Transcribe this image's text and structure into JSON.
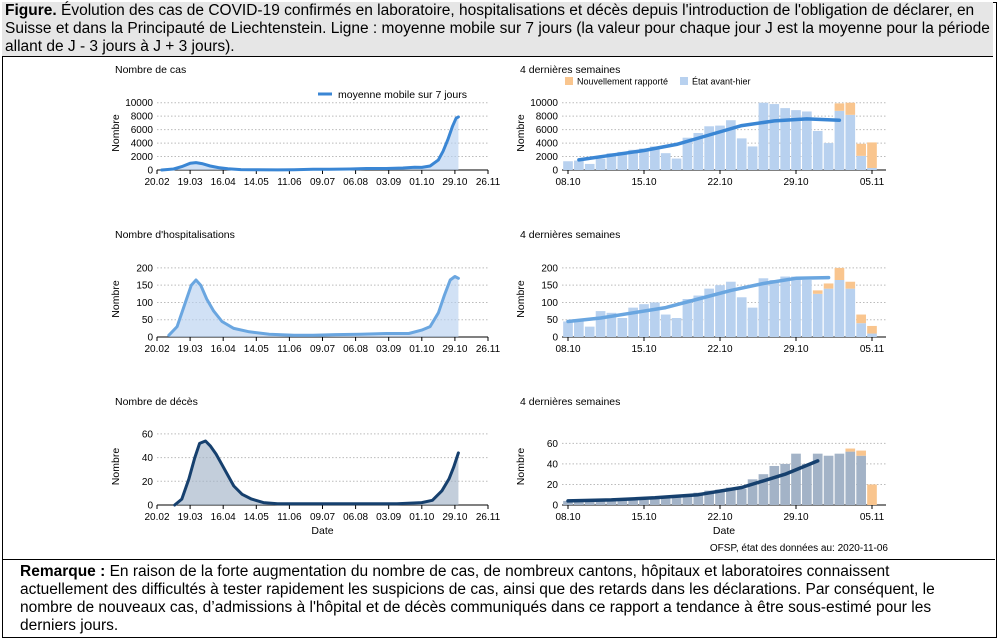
{
  "caption": {
    "label": "Figure.",
    "text": "Évolution des cas de COVID-19 confirmés en laboratoire, hospitalisations et décès depuis l'introduction de l'obligation de déclarer, en Suisse et dans la Principauté de Liechtenstein. Ligne : moyenne mobile sur 7 jours (la valeur pour chaque jour J est la moyenne pour la période allant de J - 3 jours à J + 3 jours)."
  },
  "remark": {
    "label": "Remarque :",
    "text": "En raison de la forte augmentation du nombre de cas, de nombreux cantons, hôpitaux et laboratoires connaissent actuellement des difficultés à tester rapidement les suspicions de cas, ainsi que des retards dans les déclarations. Par conséquent, le nombre de nouveaux cas, d’admissions à l'hôpital et de décès communiqués dans ce rapport a tendance à être sous-estimé pour les derniers jours."
  },
  "source": "OFSP, état des données au: 2020-11-06",
  "colors": {
    "cases": "#3a86d4",
    "hosp": "#6aa6e0",
    "deaths": "#16406e",
    "bar_light": "#b8d1ef",
    "bar_deaths": "#a3b3c7",
    "new_reported": "#f9c58e",
    "grid": "#bbbbbb"
  },
  "chart_data": [
    {
      "id": "cases_long",
      "type": "area",
      "title": "Nombre de cas",
      "xlabel": "",
      "ylabel": "Nombre",
      "xticks": [
        "20.02",
        "19.03",
        "16.04",
        "14.05",
        "11.06",
        "09.07",
        "06.08",
        "03.09",
        "01.10",
        "29.10",
        "26.11"
      ],
      "ylim": [
        0,
        11000
      ],
      "yticks": [
        0,
        2000,
        4000,
        6000,
        8000,
        10000
      ],
      "legend": [
        "moyenne mobile sur 7 jours"
      ],
      "legend_position": "top-right",
      "series": [
        {
          "name": "moyenne mobile sur 7 jours",
          "x": [
            "2020-02-24",
            "2020-03-05",
            "2020-03-12",
            "2020-03-19",
            "2020-03-24",
            "2020-03-29",
            "2020-04-05",
            "2020-04-12",
            "2020-04-20",
            "2020-05-01",
            "2020-05-15",
            "2020-06-01",
            "2020-06-15",
            "2020-07-01",
            "2020-07-15",
            "2020-08-01",
            "2020-08-15",
            "2020-09-01",
            "2020-09-15",
            "2020-09-25",
            "2020-10-01",
            "2020-10-08",
            "2020-10-15",
            "2020-10-19",
            "2020-10-23",
            "2020-10-27",
            "2020-10-30",
            "2020-11-01"
          ],
          "y": [
            0,
            150,
            500,
            1000,
            1100,
            950,
            600,
            350,
            200,
            60,
            30,
            20,
            30,
            100,
            110,
            150,
            220,
            230,
            300,
            420,
            380,
            600,
            1500,
            2800,
            4500,
            6500,
            7700,
            7900
          ]
        }
      ]
    },
    {
      "id": "cases_recent",
      "type": "bar",
      "title": "4 dernières semaines",
      "xlabel": "",
      "ylabel": "Nombre",
      "xticks": [
        "08.10",
        "15.10",
        "22.10",
        "29.10",
        "05.11"
      ],
      "ylim": [
        0,
        11000
      ],
      "yticks": [
        0,
        2000,
        4000,
        6000,
        8000,
        10000
      ],
      "legend": [
        "Nouvellement rapporté",
        "État avant-hier"
      ],
      "legend_position": "top-right",
      "series": [
        {
          "name": "État avant-hier",
          "x": [
            "2020-10-08",
            "2020-10-09",
            "2020-10-10",
            "2020-10-11",
            "2020-10-12",
            "2020-10-13",
            "2020-10-14",
            "2020-10-15",
            "2020-10-16",
            "2020-10-17",
            "2020-10-18",
            "2020-10-19",
            "2020-10-20",
            "2020-10-21",
            "2020-10-22",
            "2020-10-23",
            "2020-10-24",
            "2020-10-25",
            "2020-10-26",
            "2020-10-27",
            "2020-10-28",
            "2020-10-29",
            "2020-10-30",
            "2020-10-31",
            "2020-11-01",
            "2020-11-02",
            "2020-11-03",
            "2020-11-04",
            "2020-11-05"
          ],
          "y": [
            1300,
            1400,
            900,
            1700,
            2500,
            2700,
            3000,
            3200,
            3500,
            2500,
            1700,
            4800,
            5500,
            6500,
            6600,
            7400,
            4700,
            3500,
            10000,
            9800,
            9200,
            8900,
            8700,
            5800,
            4000,
            8800,
            8200,
            2100,
            300
          ]
        },
        {
          "name": "Nouvellement rapporté",
          "x": [
            "2020-10-08",
            "2020-10-09",
            "2020-10-10",
            "2020-10-11",
            "2020-10-12",
            "2020-10-13",
            "2020-10-14",
            "2020-10-15",
            "2020-10-16",
            "2020-10-17",
            "2020-10-18",
            "2020-10-19",
            "2020-10-20",
            "2020-10-21",
            "2020-10-22",
            "2020-10-23",
            "2020-10-24",
            "2020-10-25",
            "2020-10-26",
            "2020-10-27",
            "2020-10-28",
            "2020-10-29",
            "2020-10-30",
            "2020-10-31",
            "2020-11-01",
            "2020-11-02",
            "2020-11-03",
            "2020-11-04",
            "2020-11-05"
          ],
          "y": [
            0,
            0,
            0,
            0,
            0,
            0,
            0,
            0,
            0,
            0,
            0,
            0,
            0,
            0,
            0,
            0,
            0,
            0,
            0,
            0,
            0,
            0,
            0,
            0,
            0,
            1100,
            1800,
            1800,
            3800
          ]
        },
        {
          "name": "moyenne mobile sur 7 jours",
          "x": [
            "2020-10-09",
            "2020-10-12",
            "2020-10-15",
            "2020-10-18",
            "2020-10-21",
            "2020-10-24",
            "2020-10-27",
            "2020-10-30",
            "2020-11-02"
          ],
          "y": [
            1500,
            2200,
            2900,
            3800,
            5200,
            6600,
            7300,
            7600,
            7400
          ]
        }
      ]
    },
    {
      "id": "hosp_long",
      "type": "area",
      "title": "Nombre d'hospitalisations",
      "xlabel": "",
      "ylabel": "Nombre",
      "xticks": [
        "20.02",
        "19.03",
        "16.04",
        "14.05",
        "11.06",
        "09.07",
        "06.08",
        "03.09",
        "01.10",
        "29.10",
        "26.11"
      ],
      "ylim": [
        0,
        220
      ],
      "yticks": [
        0,
        50,
        100,
        150,
        200
      ],
      "series": [
        {
          "name": "moyenne mobile sur 7 jours",
          "x": [
            "2020-03-01",
            "2020-03-08",
            "2020-03-14",
            "2020-03-20",
            "2020-03-24",
            "2020-03-28",
            "2020-04-02",
            "2020-04-08",
            "2020-04-15",
            "2020-04-25",
            "2020-05-08",
            "2020-05-25",
            "2020-06-15",
            "2020-07-01",
            "2020-07-20",
            "2020-08-10",
            "2020-09-01",
            "2020-09-20",
            "2020-10-01",
            "2020-10-08",
            "2020-10-15",
            "2020-10-20",
            "2020-10-25",
            "2020-10-29",
            "2020-11-01"
          ],
          "y": [
            5,
            30,
            90,
            150,
            165,
            150,
            110,
            75,
            45,
            25,
            15,
            8,
            5,
            5,
            7,
            8,
            10,
            10,
            20,
            30,
            70,
            120,
            165,
            175,
            170
          ]
        }
      ]
    },
    {
      "id": "hosp_recent",
      "type": "bar",
      "title": "4 dernières semaines",
      "xlabel": "",
      "ylabel": "Nombre",
      "xticks": [
        "08.10",
        "15.10",
        "22.10",
        "29.10",
        "05.11"
      ],
      "ylim": [
        0,
        220
      ],
      "yticks": [
        0,
        50,
        100,
        150,
        200
      ],
      "series": [
        {
          "name": "État avant-hier",
          "x": [
            "2020-10-08",
            "2020-10-09",
            "2020-10-10",
            "2020-10-11",
            "2020-10-12",
            "2020-10-13",
            "2020-10-14",
            "2020-10-15",
            "2020-10-16",
            "2020-10-17",
            "2020-10-18",
            "2020-10-19",
            "2020-10-20",
            "2020-10-21",
            "2020-10-22",
            "2020-10-23",
            "2020-10-24",
            "2020-10-25",
            "2020-10-26",
            "2020-10-27",
            "2020-10-28",
            "2020-10-29",
            "2020-10-30",
            "2020-10-31",
            "2020-11-01",
            "2020-11-02",
            "2020-11-03",
            "2020-11-04",
            "2020-11-05"
          ],
          "y": [
            45,
            50,
            30,
            75,
            70,
            55,
            85,
            95,
            100,
            65,
            55,
            110,
            120,
            140,
            150,
            160,
            115,
            85,
            170,
            165,
            175,
            175,
            165,
            125,
            140,
            165,
            140,
            40,
            10
          ]
        },
        {
          "name": "Nouvellement rapporté",
          "x": [
            "2020-10-08",
            "2020-10-09",
            "2020-10-10",
            "2020-10-11",
            "2020-10-12",
            "2020-10-13",
            "2020-10-14",
            "2020-10-15",
            "2020-10-16",
            "2020-10-17",
            "2020-10-18",
            "2020-10-19",
            "2020-10-20",
            "2020-10-21",
            "2020-10-22",
            "2020-10-23",
            "2020-10-24",
            "2020-10-25",
            "2020-10-26",
            "2020-10-27",
            "2020-10-28",
            "2020-10-29",
            "2020-10-30",
            "2020-10-31",
            "2020-11-01",
            "2020-11-02",
            "2020-11-03",
            "2020-11-04",
            "2020-11-05"
          ],
          "y": [
            0,
            0,
            0,
            0,
            0,
            0,
            0,
            0,
            0,
            0,
            0,
            0,
            0,
            0,
            0,
            0,
            0,
            0,
            0,
            0,
            0,
            0,
            0,
            10,
            15,
            35,
            20,
            25,
            22
          ]
        },
        {
          "name": "moyenne mobile sur 7 jours",
          "x": [
            "2020-10-08",
            "2020-10-11",
            "2020-10-14",
            "2020-10-17",
            "2020-10-20",
            "2020-10-23",
            "2020-10-26",
            "2020-10-29",
            "2020-11-01"
          ],
          "y": [
            45,
            55,
            70,
            85,
            110,
            135,
            155,
            170,
            172
          ]
        }
      ]
    },
    {
      "id": "deaths_long",
      "type": "area",
      "title": "Nombre de décès",
      "xlabel": "Date",
      "ylabel": "Nombre",
      "xticks": [
        "20.02",
        "19.03",
        "16.04",
        "14.05",
        "11.06",
        "09.07",
        "06.08",
        "03.09",
        "01.10",
        "29.10",
        "26.11"
      ],
      "ylim": [
        0,
        65
      ],
      "yticks": [
        0,
        20,
        40,
        60
      ],
      "series": [
        {
          "name": "moyenne mobile sur 7 jours",
          "x": [
            "2020-03-06",
            "2020-03-12",
            "2020-03-18",
            "2020-03-23",
            "2020-03-27",
            "2020-04-01",
            "2020-04-05",
            "2020-04-10",
            "2020-04-15",
            "2020-04-20",
            "2020-04-25",
            "2020-05-02",
            "2020-05-10",
            "2020-05-20",
            "2020-06-01",
            "2020-06-20",
            "2020-07-10",
            "2020-08-01",
            "2020-08-20",
            "2020-09-10",
            "2020-10-01",
            "2020-10-10",
            "2020-10-18",
            "2020-10-24",
            "2020-10-28",
            "2020-11-01"
          ],
          "y": [
            0,
            5,
            22,
            40,
            52,
            54,
            50,
            43,
            34,
            25,
            16,
            9,
            5,
            2,
            1,
            1,
            1,
            1,
            1,
            1,
            2,
            4,
            12,
            22,
            32,
            44
          ]
        }
      ]
    },
    {
      "id": "deaths_recent",
      "type": "bar",
      "title": "4 dernières semaines",
      "xlabel": "Date",
      "ylabel": "Nombre",
      "xticks": [
        "08.10",
        "15.10",
        "22.10",
        "29.10",
        "05.11"
      ],
      "ylim": [
        0,
        75
      ],
      "yticks": [
        0,
        20,
        40,
        60
      ],
      "series": [
        {
          "name": "État avant-hier",
          "x": [
            "2020-10-08",
            "2020-10-09",
            "2020-10-10",
            "2020-10-11",
            "2020-10-12",
            "2020-10-13",
            "2020-10-14",
            "2020-10-15",
            "2020-10-16",
            "2020-10-17",
            "2020-10-18",
            "2020-10-19",
            "2020-10-20",
            "2020-10-21",
            "2020-10-22",
            "2020-10-23",
            "2020-10-24",
            "2020-10-25",
            "2020-10-26",
            "2020-10-27",
            "2020-10-28",
            "2020-10-29",
            "2020-10-30",
            "2020-10-31",
            "2020-11-01",
            "2020-11-02",
            "2020-11-03",
            "2020-11-04",
            "2020-11-05"
          ],
          "y": [
            4,
            4,
            5,
            4,
            5,
            5,
            6,
            5,
            6,
            7,
            8,
            9,
            12,
            14,
            15,
            17,
            16,
            25,
            30,
            38,
            40,
            50,
            40,
            50,
            48,
            50,
            52,
            48,
            0
          ]
        },
        {
          "name": "Nouvellement rapporté",
          "x": [
            "2020-10-08",
            "2020-10-09",
            "2020-10-10",
            "2020-10-11",
            "2020-10-12",
            "2020-10-13",
            "2020-10-14",
            "2020-10-15",
            "2020-10-16",
            "2020-10-17",
            "2020-10-18",
            "2020-10-19",
            "2020-10-20",
            "2020-10-21",
            "2020-10-22",
            "2020-10-23",
            "2020-10-24",
            "2020-10-25",
            "2020-10-26",
            "2020-10-27",
            "2020-10-28",
            "2020-10-29",
            "2020-10-30",
            "2020-10-31",
            "2020-11-01",
            "2020-11-02",
            "2020-11-03",
            "2020-11-04",
            "2020-11-05"
          ],
          "y": [
            0,
            0,
            0,
            0,
            0,
            0,
            0,
            0,
            0,
            0,
            0,
            0,
            0,
            0,
            0,
            0,
            0,
            0,
            0,
            0,
            0,
            0,
            0,
            0,
            0,
            0,
            3,
            5,
            20
          ]
        },
        {
          "name": "moyenne mobile sur 7 jours",
          "x": [
            "2020-10-08",
            "2020-10-12",
            "2020-10-16",
            "2020-10-20",
            "2020-10-24",
            "2020-10-28",
            "2020-10-31"
          ],
          "y": [
            4,
            5,
            7,
            10,
            17,
            30,
            43
          ]
        }
      ]
    }
  ]
}
